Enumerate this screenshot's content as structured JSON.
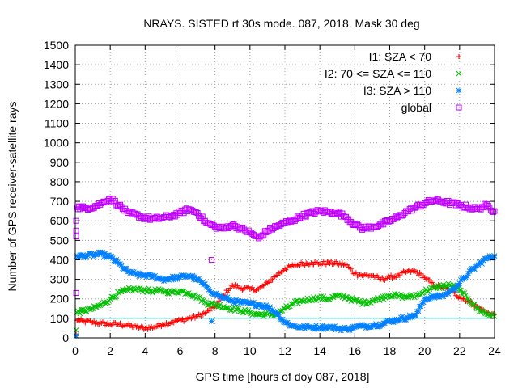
{
  "chart_data": {
    "type": "scatter",
    "title": "NRAYS. SISTED rt 30s mode. 087, 2018. Mask 30 deg",
    "xlabel": "GPS time [hours of doy 087, 2018]",
    "ylabel": "Number of GPS receiver-satellite rays",
    "xlim": [
      0,
      24
    ],
    "ylim": [
      0,
      1500
    ],
    "xticks": [
      "0",
      "2",
      "4",
      "6",
      "8",
      "10",
      "12",
      "14",
      "16",
      "18",
      "20",
      "22",
      "24"
    ],
    "yticks": [
      "0",
      "100",
      "200",
      "300",
      "400",
      "500",
      "600",
      "700",
      "800",
      "900",
      "1000",
      "1100",
      "1200",
      "1300",
      "1400",
      "1500"
    ],
    "grid": true,
    "legend_position": "top-right",
    "reference_line": {
      "y": 100,
      "color": "#3fd3d3"
    },
    "series": [
      {
        "name": "I1: SZA < 70",
        "marker": "+",
        "color": "#ff0000",
        "x": [
          0.1,
          0.5,
          1,
          1.5,
          2,
          2.5,
          3,
          3.5,
          4,
          4.5,
          5,
          5.5,
          6,
          6.5,
          7,
          7.5,
          8,
          8.5,
          9,
          9.5,
          10,
          10.5,
          11,
          11.5,
          12,
          12.5,
          13,
          13.5,
          14,
          14.5,
          15,
          15.5,
          16,
          16.5,
          17,
          17.5,
          18,
          18.5,
          19,
          19.5,
          20,
          20.5,
          21,
          21.5,
          22,
          22.5,
          23,
          23.5,
          24
        ],
        "values": [
          90,
          85,
          80,
          75,
          70,
          70,
          65,
          55,
          50,
          55,
          70,
          80,
          90,
          100,
          110,
          130,
          160,
          220,
          270,
          255,
          250,
          250,
          280,
          320,
          355,
          370,
          380,
          385,
          380,
          385,
          380,
          375,
          330,
          320,
          320,
          300,
          310,
          320,
          340,
          340,
          310,
          270,
          260,
          240,
          210,
          190,
          160,
          130,
          120
        ]
      },
      {
        "name": "I2: 70 <= SZA <= 110",
        "marker": "x",
        "color": "#00c000",
        "x": [
          0.1,
          0.5,
          1,
          1.5,
          2,
          2.5,
          3,
          3.5,
          4,
          4.5,
          5,
          5.5,
          6,
          6.5,
          7,
          7.5,
          8,
          8.5,
          9,
          9.5,
          10,
          10.5,
          11,
          11.5,
          12,
          12.5,
          13,
          13.5,
          14,
          14.5,
          15,
          15.5,
          16,
          16.5,
          17,
          17.5,
          18,
          18.5,
          19,
          19.5,
          20,
          20.5,
          21,
          21.5,
          22,
          22.5,
          23,
          23.5,
          24
        ],
        "values": [
          130,
          140,
          150,
          170,
          200,
          230,
          245,
          250,
          245,
          240,
          240,
          235,
          240,
          230,
          210,
          180,
          170,
          160,
          150,
          140,
          130,
          120,
          120,
          120,
          150,
          175,
          190,
          200,
          205,
          200,
          215,
          210,
          190,
          180,
          190,
          205,
          220,
          215,
          210,
          215,
          240,
          255,
          265,
          270,
          245,
          200,
          150,
          125,
          110
        ]
      },
      {
        "name": "I3: SZA > 110",
        "marker": "*",
        "color": "#0080ff",
        "x": [
          0.1,
          0.5,
          1,
          1.5,
          2,
          2.5,
          3,
          3.5,
          4,
          4.5,
          5,
          5.5,
          6,
          6.5,
          7,
          7.5,
          8,
          8.5,
          9,
          9.5,
          10,
          10.5,
          11,
          11.5,
          12,
          12.5,
          13,
          13.5,
          14,
          14.5,
          15,
          15.5,
          16,
          16.5,
          17,
          17.5,
          18,
          18.5,
          19,
          19.5,
          20,
          20.5,
          21,
          21.5,
          22,
          22.5,
          23,
          23.5,
          24
        ],
        "values": [
          420,
          420,
          425,
          430,
          415,
          380,
          340,
          325,
          320,
          315,
          300,
          305,
          310,
          320,
          300,
          260,
          225,
          205,
          190,
          180,
          175,
          170,
          160,
          130,
          80,
          60,
          55,
          55,
          55,
          55,
          50,
          45,
          55,
          60,
          65,
          70,
          85,
          95,
          105,
          115,
          200,
          210,
          215,
          240,
          280,
          330,
          370,
          405,
          420
        ]
      },
      {
        "name": "global",
        "marker": "square",
        "color": "#c000ff",
        "x": [
          0.1,
          0.5,
          1,
          1.5,
          2,
          2.5,
          3,
          3.5,
          4,
          4.5,
          5,
          5.5,
          6,
          6.5,
          7,
          7.5,
          8,
          8.5,
          9,
          9.5,
          10,
          10.5,
          11,
          11.5,
          12,
          12.5,
          13,
          13.5,
          14,
          14.5,
          15,
          15.5,
          16,
          16.5,
          17,
          17.5,
          18,
          18.5,
          19,
          19.5,
          20,
          20.5,
          21,
          21.5,
          22,
          22.5,
          23,
          23.5,
          24
        ],
        "values": [
          670,
          665,
          670,
          690,
          715,
          680,
          640,
          630,
          615,
          610,
          615,
          625,
          640,
          660,
          640,
          590,
          570,
          560,
          580,
          560,
          540,
          510,
          550,
          570,
          590,
          605,
          625,
          640,
          650,
          645,
          640,
          620,
          580,
          560,
          570,
          580,
          600,
          620,
          650,
          670,
          690,
          705,
          700,
          690,
          680,
          670,
          660,
          680,
          650
        ]
      }
    ],
    "outlier_points": [
      {
        "series": "global",
        "x": 0.05,
        "y": 520
      },
      {
        "series": "global",
        "x": 0.05,
        "y": 550
      },
      {
        "series": "global",
        "x": 0.05,
        "y": 600
      },
      {
        "series": "global",
        "x": 0.05,
        "y": 230
      },
      {
        "series": "global",
        "x": 7.8,
        "y": 400
      },
      {
        "series": "I3: SZA > 110",
        "x": 7.8,
        "y": 85
      },
      {
        "series": "I1: SZA < 70",
        "x": 0.05,
        "y": 20
      },
      {
        "series": "I2: 70 <= SZA <= 110",
        "x": 0.05,
        "y": 40
      },
      {
        "series": "I3: SZA > 110",
        "x": 0.05,
        "y": 10
      }
    ]
  }
}
